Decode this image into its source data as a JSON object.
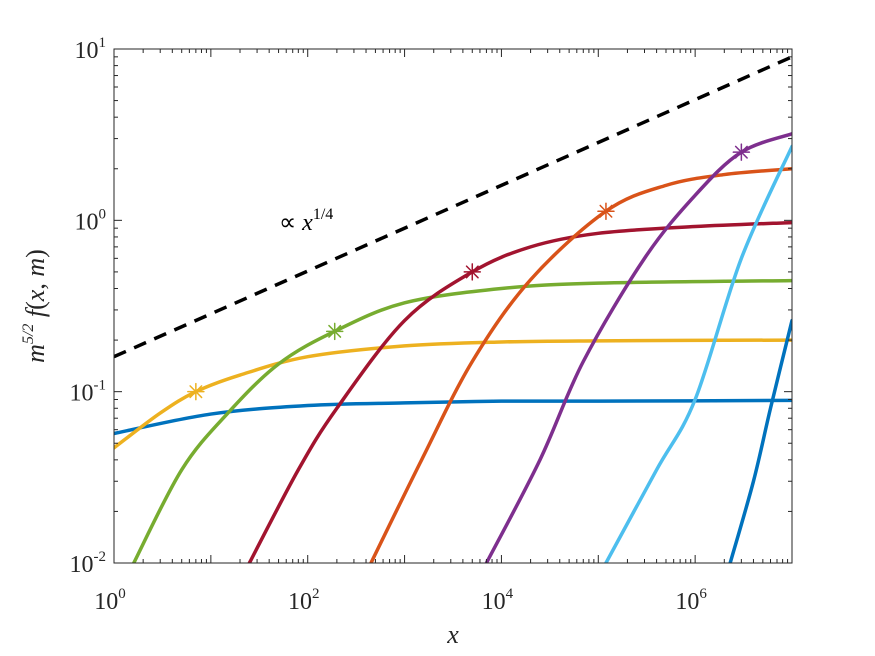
{
  "chart_data": {
    "type": "line",
    "xscale": "log",
    "yscale": "log",
    "xlim": [
      1,
      10000000
    ],
    "ylim": [
      0.01,
      10
    ],
    "x_ticks": [
      {
        "base": "10",
        "exp": "0",
        "value": 1
      },
      {
        "base": "10",
        "exp": "2",
        "value": 100
      },
      {
        "base": "10",
        "exp": "4",
        "value": 10000
      },
      {
        "base": "10",
        "exp": "6",
        "value": 1000000
      }
    ],
    "y_ticks": [
      {
        "base": "10",
        "exp": "-2",
        "value": 0.01
      },
      {
        "base": "10",
        "exp": "-1",
        "value": 0.1
      },
      {
        "base": "10",
        "exp": "0",
        "value": 1
      },
      {
        "base": "10",
        "exp": "1",
        "value": 10
      }
    ],
    "xlabel": "x",
    "ylabel": "m5/2 f(x, m)",
    "grid": false,
    "legend": "none",
    "reference_line": {
      "label": "∝ x1/4",
      "color": "#000000",
      "style": "dashed",
      "points": [
        [
          1,
          0.16
        ],
        [
          10000000,
          9.0
        ]
      ]
    },
    "series": [
      {
        "color": "#0072BD",
        "marker": null,
        "points": [
          [
            1,
            0.057
          ],
          [
            10,
            0.074
          ],
          [
            100,
            0.083
          ],
          [
            1000,
            0.086
          ],
          [
            10000,
            0.088
          ],
          [
            100000,
            0.088
          ],
          [
            10000000,
            0.089
          ]
        ]
      },
      {
        "color": "#EDB120",
        "marker": [
          7,
          0.1
        ],
        "points": [
          [
            1,
            0.047
          ],
          [
            3,
            0.075
          ],
          [
            7,
            0.1
          ],
          [
            20,
            0.125
          ],
          [
            100,
            0.16
          ],
          [
            1000,
            0.185
          ],
          [
            10000,
            0.195
          ],
          [
            100000,
            0.198
          ],
          [
            10000000,
            0.2
          ]
        ]
      },
      {
        "color": "#77AC30",
        "marker": [
          190,
          0.225
        ],
        "points": [
          [
            1.6,
            0.01
          ],
          [
            5,
            0.035
          ],
          [
            15,
            0.075
          ],
          [
            50,
            0.145
          ],
          [
            190,
            0.225
          ],
          [
            1000,
            0.33
          ],
          [
            10000,
            0.4
          ],
          [
            100000,
            0.43
          ],
          [
            10000000,
            0.445
          ]
        ]
      },
      {
        "color": "#A2142F",
        "marker": [
          5000,
          0.5
        ],
        "points": [
          [
            25,
            0.01
          ],
          [
            80,
            0.035
          ],
          [
            200,
            0.08
          ],
          [
            1000,
            0.26
          ],
          [
            5000,
            0.5
          ],
          [
            20000,
            0.7
          ],
          [
            100000,
            0.84
          ],
          [
            1000000,
            0.92
          ],
          [
            10000000,
            0.97
          ]
        ]
      },
      {
        "color": "#D95319",
        "marker": [
          120000,
          1.13
        ],
        "points": [
          [
            450,
            0.01
          ],
          [
            1500,
            0.04
          ],
          [
            5000,
            0.15
          ],
          [
            20000,
            0.45
          ],
          [
            120000,
            1.13
          ],
          [
            500000,
            1.6
          ],
          [
            2000000,
            1.85
          ],
          [
            10000000,
            2.0
          ]
        ]
      },
      {
        "color": "#7E2F8E",
        "marker": [
          3000000,
          2.5
        ],
        "points": [
          [
            7000,
            0.01
          ],
          [
            25000,
            0.04
          ],
          [
            70000,
            0.15
          ],
          [
            300000,
            0.6
          ],
          [
            1000000,
            1.4
          ],
          [
            3000000,
            2.5
          ],
          [
            10000000,
            3.2
          ]
        ]
      },
      {
        "color": "#4DBEEE",
        "marker": null,
        "points": [
          [
            120000,
            0.01
          ],
          [
            400000,
            0.035
          ],
          [
            1000000,
            0.09
          ],
          [
            3000000,
            0.6
          ],
          [
            10000000,
            2.7
          ]
        ]
      },
      {
        "color": "#0072BD",
        "marker": null,
        "points": [
          [
            2300000,
            0.01
          ],
          [
            4000000,
            0.03
          ],
          [
            6000000,
            0.08
          ],
          [
            10000000,
            0.26
          ]
        ]
      }
    ]
  }
}
